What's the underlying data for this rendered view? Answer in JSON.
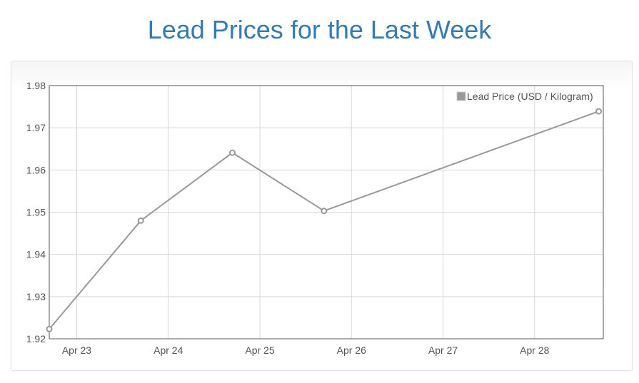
{
  "page": {
    "title": "Lead Prices for the Last Week",
    "title_color": "#337ab7"
  },
  "chart_data": {
    "type": "line",
    "title": "",
    "xlabel": "",
    "ylabel": "",
    "x_tick_labels": [
      "Apr 23",
      "Apr 24",
      "Apr 25",
      "Apr 26",
      "Apr 27",
      "Apr 28"
    ],
    "x_ticks": [
      0.3,
      1.3,
      2.3,
      3.3,
      4.3,
      5.3
    ],
    "xlim": [
      0,
      6.05
    ],
    "y_ticks": [
      "1.92",
      "1.93",
      "1.94",
      "1.95",
      "1.96",
      "1.97",
      "1.98"
    ],
    "ylim": [
      1.92,
      1.98
    ],
    "grid": true,
    "legend_position": "top-right",
    "series": [
      {
        "name": "Lead Price (USD / Kilogram)",
        "color": "#999999",
        "x": [
          0,
          1.0,
          2.0,
          3.0,
          6.0
        ],
        "y": [
          1.9223,
          1.948,
          1.9641,
          1.9503,
          1.9739
        ]
      }
    ]
  }
}
